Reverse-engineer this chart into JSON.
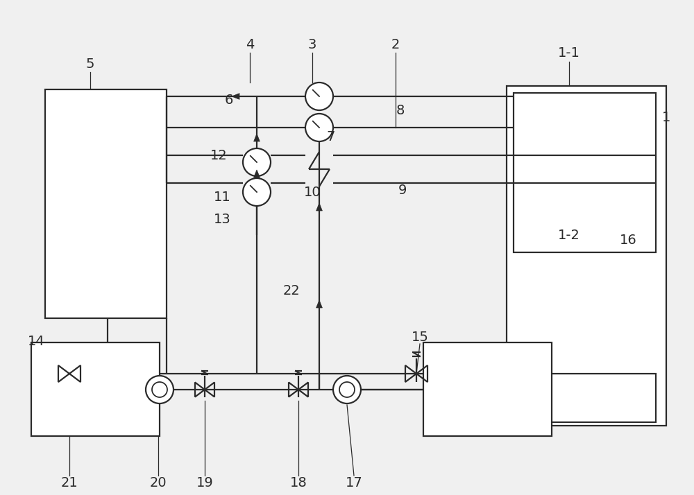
{
  "bg_color": "#f0f0f0",
  "line_color": "#2a2a2a",
  "lw": 1.6,
  "thin_lw": 0.9,
  "fig_w": 10.0,
  "fig_h": 7.14,
  "dpi": 100
}
